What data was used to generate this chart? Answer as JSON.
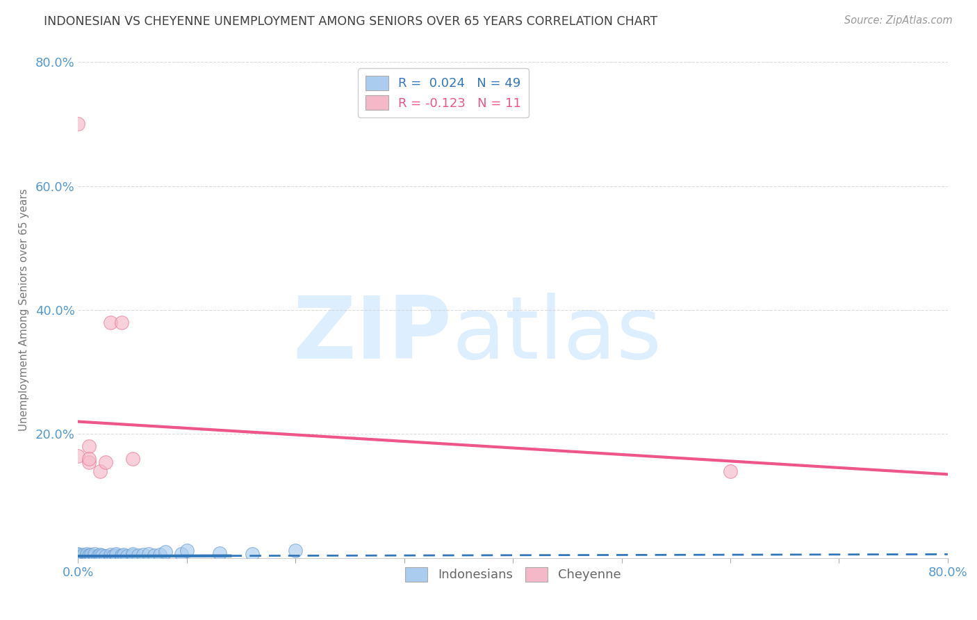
{
  "title": "INDONESIAN VS CHEYENNE UNEMPLOYMENT AMONG SENIORS OVER 65 YEARS CORRELATION CHART",
  "source": "Source: ZipAtlas.com",
  "ylabel": "Unemployment Among Seniors over 65 years",
  "xlabel": "",
  "xlim": [
    0.0,
    0.8
  ],
  "ylim": [
    0.0,
    0.8
  ],
  "legend_r_blue": "R = 0.024",
  "legend_n_blue": "N = 49",
  "legend_r_pink": "R = -0.123",
  "legend_n_pink": "N = 11",
  "blue_color": "#aaccee",
  "blue_color_dark": "#6699cc",
  "pink_color": "#f5b8c8",
  "pink_color_dark": "#e87090",
  "trendline_blue_color": "#3377bb",
  "trendline_pink_color": "#ee5588",
  "trendline_blue_solid_end": 0.14,
  "trendline_blue_start_y": 0.003,
  "trendline_blue_end_y": 0.006,
  "trendline_pink_start_y": 0.22,
  "trendline_pink_end_y": 0.135,
  "indonesian_x": [
    0.0,
    0.0,
    0.0,
    0.0,
    0.0,
    0.0,
    0.0,
    0.0,
    0.0,
    0.0,
    0.005,
    0.005,
    0.005,
    0.008,
    0.008,
    0.008,
    0.01,
    0.01,
    0.012,
    0.012,
    0.015,
    0.015,
    0.018,
    0.02,
    0.02,
    0.022,
    0.025,
    0.03,
    0.03,
    0.032,
    0.035,
    0.035,
    0.04,
    0.04,
    0.042,
    0.045,
    0.05,
    0.05,
    0.055,
    0.06,
    0.065,
    0.07,
    0.075,
    0.08,
    0.095,
    0.1,
    0.13,
    0.16,
    0.2
  ],
  "indonesian_y": [
    0.0,
    0.0,
    0.002,
    0.002,
    0.003,
    0.003,
    0.004,
    0.005,
    0.005,
    0.006,
    0.0,
    0.003,
    0.005,
    0.002,
    0.004,
    0.006,
    0.002,
    0.004,
    0.001,
    0.005,
    0.003,
    0.006,
    0.003,
    0.002,
    0.005,
    0.004,
    0.003,
    0.002,
    0.005,
    0.003,
    0.004,
    0.006,
    0.002,
    0.004,
    0.005,
    0.003,
    0.004,
    0.006,
    0.004,
    0.005,
    0.006,
    0.004,
    0.005,
    0.01,
    0.007,
    0.012,
    0.008,
    0.006,
    0.012
  ],
  "cheyenne_x": [
    0.0,
    0.0,
    0.01,
    0.01,
    0.02,
    0.025,
    0.03,
    0.04,
    0.05,
    0.6,
    0.01
  ],
  "cheyenne_y": [
    0.7,
    0.165,
    0.155,
    0.18,
    0.14,
    0.155,
    0.38,
    0.38,
    0.16,
    0.14,
    0.16
  ],
  "background_color": "#ffffff",
  "grid_color": "#cccccc",
  "title_color": "#404040",
  "axis_label_color": "#5599cc",
  "watermark_zip": "ZIP",
  "watermark_atlas": "atlas",
  "watermark_color": "#ddeeff"
}
